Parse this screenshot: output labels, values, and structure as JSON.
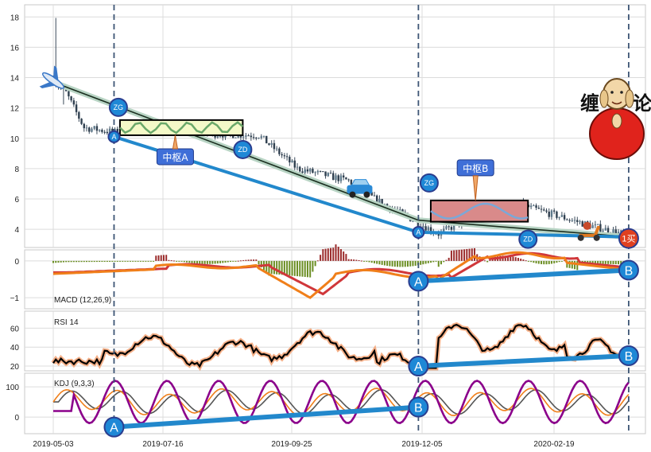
{
  "chart_data": {
    "type": "candlestick",
    "x_ticks": [
      "2019-05-03",
      "2019-07-16",
      "2019-09-25",
      "2019-12-05",
      "2020-02-19"
    ],
    "price_panel": {
      "y_ticks": [
        "4",
        "6",
        "8",
        "10",
        "12",
        "14",
        "16",
        "18"
      ],
      "ylim": [
        2.8,
        18.8
      ],
      "trend_line": [
        {
          "x": "2019-05-03",
          "y": 13.7
        },
        {
          "x": "2019-12-03",
          "y": 4.6
        },
        {
          "x": "2020-04-02",
          "y": 3.5
        }
      ],
      "lower_line": [
        {
          "x": "2019-06-13",
          "y": 10.1
        },
        {
          "x": "2019-12-03",
          "y": 3.8
        },
        {
          "x": "2020-04-02",
          "y": 3.5
        }
      ],
      "zones": [
        {
          "label": "中枢A",
          "zg_label": "ZG",
          "zd_label": "ZD",
          "x_start": "2019-06-17",
          "x_end": "2019-08-29",
          "top": 11.2,
          "bottom": 10.2
        },
        {
          "label": "中枢B",
          "zg_label": "ZG",
          "zd_label": "ZD",
          "x_start": "2019-12-10",
          "x_end": "2020-02-04",
          "top": 5.9,
          "bottom": 4.5
        }
      ],
      "point_labels": [
        {
          "text": "A",
          "x": "2019-06-13",
          "y": 10.1
        },
        {
          "text": "A",
          "x": "2019-12-03",
          "y": 3.8
        }
      ],
      "buy_signal": {
        "text": "1买",
        "x": "2020-04-02",
        "y": 3.4
      }
    },
    "macd_panel": {
      "label": "MACD (12,26,9)",
      "y_ticks": [
        "0",
        "−1"
      ],
      "ylim": [
        -1.3,
        0.3
      ],
      "divergence": {
        "a_label": "A",
        "b_label": "B",
        "a": {
          "x": "2019-12-03",
          "y": -0.55
        },
        "b": {
          "x": "2020-04-02",
          "y": -0.25
        }
      }
    },
    "rsi_panel": {
      "label": "RSI 14",
      "y_ticks": [
        "20",
        "40",
        "60"
      ],
      "ylim": [
        15,
        78
      ],
      "divergence": {
        "a_label": "A",
        "b_label": "B",
        "a": {
          "x": "2019-12-03",
          "y": 20
        },
        "b": {
          "x": "2020-04-02",
          "y": 31
        }
      }
    },
    "kdj_panel": {
      "label": "KDJ (9,3,3)",
      "y_ticks": [
        "0",
        "100"
      ],
      "ylim": [
        -55,
        145
      ],
      "divergence": {
        "a_label": "A",
        "b_label": "B",
        "a": {
          "x": "2019-06-13",
          "y": -33
        },
        "b": {
          "x": "2019-12-03",
          "y": 33
        }
      }
    },
    "vertical_markers": [
      "2019-06-13",
      "2019-12-03",
      "2020-04-02"
    ]
  },
  "logo": {
    "left": "缠",
    "right": "论"
  },
  "colors": {
    "trend": "#1a2e1f",
    "trend_glow": "#b8d4c4",
    "support": "#2288cc",
    "circle": "#1e88d6",
    "circle_border": "#2a3d8f",
    "zone_label_bg": "#3f6fd8",
    "zone_a_fill": "#f4f9c8",
    "zone_b_fill": "#d98a8a",
    "macd_dif": "#f07f1a",
    "macd_dea": "#d0373a",
    "macd_hist_pos": "#9b2b2b",
    "macd_hist_neg": "#6b8e23",
    "rsi_line": "#000000",
    "rsi_glow": "#f5b088",
    "kdj_k": "#f07f1a",
    "kdj_d": "#555555",
    "kdj_j": "#8b008b",
    "buy": "#e04020"
  }
}
